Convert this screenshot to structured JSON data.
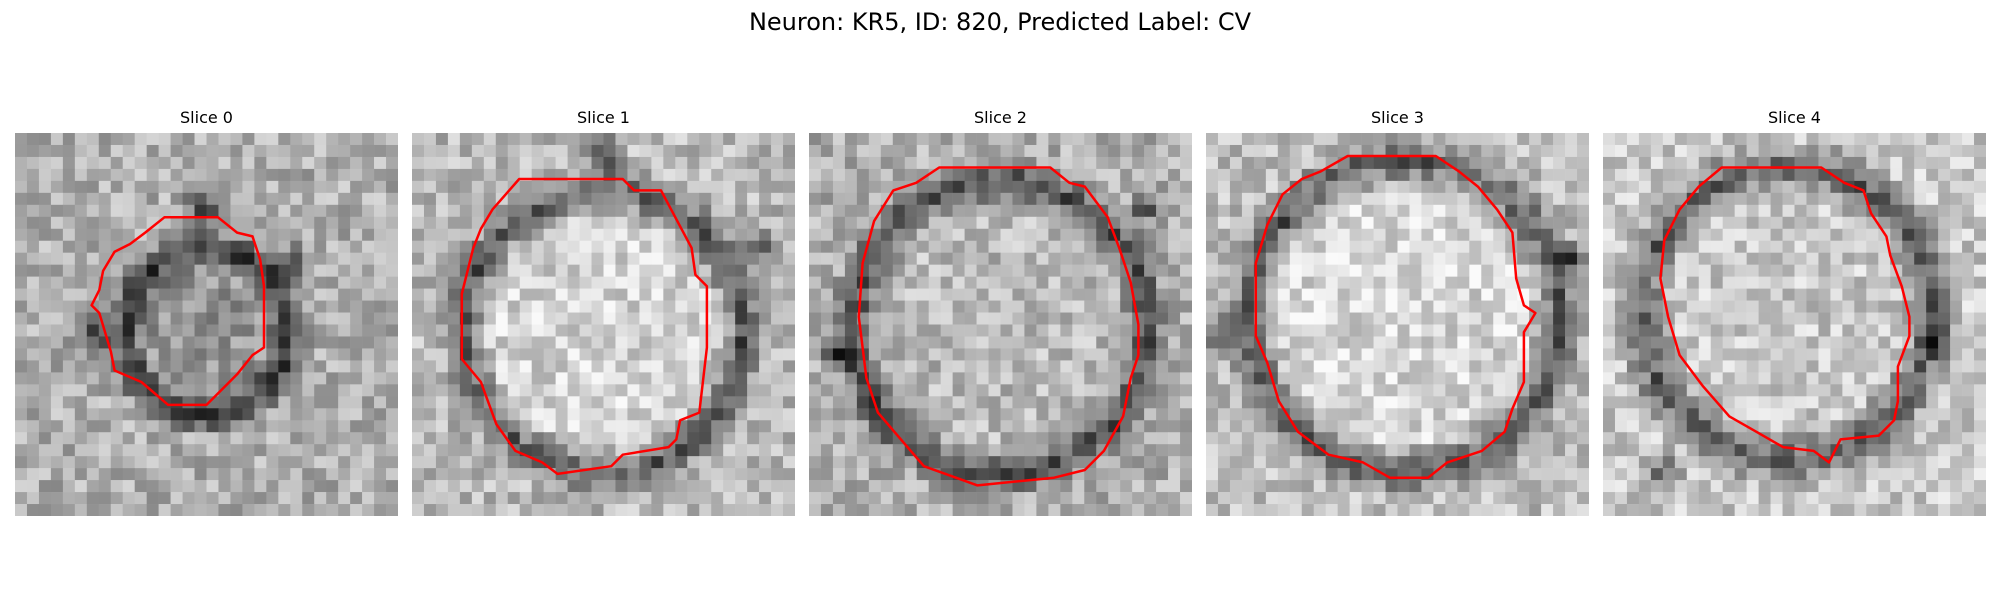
{
  "figure": {
    "title": "Neuron: KR5, ID: 820, Predicted Label: CV"
  },
  "panels": [
    {
      "title": "Slice 0"
    },
    {
      "title": "Slice 1"
    },
    {
      "title": "Slice 2"
    },
    {
      "title": "Slice 3"
    },
    {
      "title": "Slice 4"
    }
  ],
  "colors": {
    "contour": "#ff0000",
    "background": "#ffffff"
  }
}
